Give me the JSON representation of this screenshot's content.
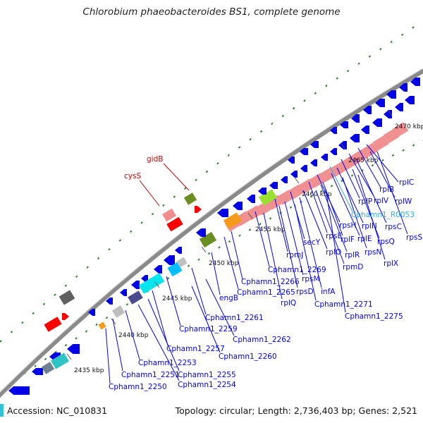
{
  "title": "Chlorobium phaeobacteroides BS1, complete genome",
  "footer": {
    "accession": "Accession: NC_010831",
    "summary": "Topology: circular; Length: 2,736,403 bp; Genes: 2,521"
  },
  "colors": {
    "backbone": "#8a8a8a",
    "cds": "#0000e6",
    "gc_skew": "#f09090",
    "rna": "#ff0000",
    "tick": "#2e7d2e",
    "link": "#0000ff",
    "red_label": "#cc0000",
    "cyan_label": "#33aaee"
  },
  "ticks": [
    "2435 kbp",
    "2440 kbp",
    "2445 kbp",
    "2450 kbp",
    "2455 kbp",
    "2460 kbp",
    "2465 kbp",
    "2470 kbp"
  ],
  "labels": [
    {
      "text": "gidB",
      "color": "red"
    },
    {
      "text": "cysS",
      "color": "red"
    },
    {
      "text": "rplC",
      "color": "blue"
    },
    {
      "text": "rplB",
      "color": "blue"
    },
    {
      "text": "rplV",
      "color": "blue"
    },
    {
      "text": "rplW",
      "color": "blue"
    },
    {
      "text": "rplP",
      "color": "blue"
    },
    {
      "text": "Cphamn1_R0053",
      "color": "cyan"
    },
    {
      "text": "rpsH",
      "color": "blue"
    },
    {
      "text": "rplN",
      "color": "blue"
    },
    {
      "text": "rpsC",
      "color": "blue"
    },
    {
      "text": "rpsS",
      "color": "blue"
    },
    {
      "text": "rpsE",
      "color": "blue"
    },
    {
      "text": "rplF",
      "color": "blue"
    },
    {
      "text": "rplE",
      "color": "blue"
    },
    {
      "text": "rpsQ",
      "color": "blue"
    },
    {
      "text": "secY",
      "color": "blue"
    },
    {
      "text": "rplO",
      "color": "blue"
    },
    {
      "text": "rplR",
      "color": "blue"
    },
    {
      "text": "rpsN",
      "color": "blue"
    },
    {
      "text": "rpmJ",
      "color": "blue"
    },
    {
      "text": "rplX",
      "color": "blue"
    },
    {
      "text": "rpmD",
      "color": "blue"
    },
    {
      "text": "Cphamn1_2269",
      "color": "blue"
    },
    {
      "text": "rpsM",
      "color": "blue"
    },
    {
      "text": "Cphamn1_2266",
      "color": "blue"
    },
    {
      "text": "rpsD",
      "color": "blue"
    },
    {
      "text": "infA",
      "color": "blue"
    },
    {
      "text": "Cphamn1_2265",
      "color": "blue"
    },
    {
      "text": "rplQ",
      "color": "blue"
    },
    {
      "text": "Cphamn1_2271",
      "color": "blue"
    },
    {
      "text": "Cphamn1_2275",
      "color": "blue"
    },
    {
      "text": "engB",
      "color": "blue"
    },
    {
      "text": "Cphamn1_2261",
      "color": "blue"
    },
    {
      "text": "Cphamn1_2259",
      "color": "blue"
    },
    {
      "text": "Cphamn1_2262",
      "color": "blue"
    },
    {
      "text": "Cphamn1_2257",
      "color": "blue"
    },
    {
      "text": "Cphamn1_2260",
      "color": "blue"
    },
    {
      "text": "Cphamn1_2253",
      "color": "blue"
    },
    {
      "text": "Cphamn1_2251",
      "color": "blue"
    },
    {
      "text": "Cphamn1_2255",
      "color": "blue"
    },
    {
      "text": "Cphamn1_2254",
      "color": "blue"
    },
    {
      "text": "Cphamn1_2250",
      "color": "blue"
    }
  ]
}
